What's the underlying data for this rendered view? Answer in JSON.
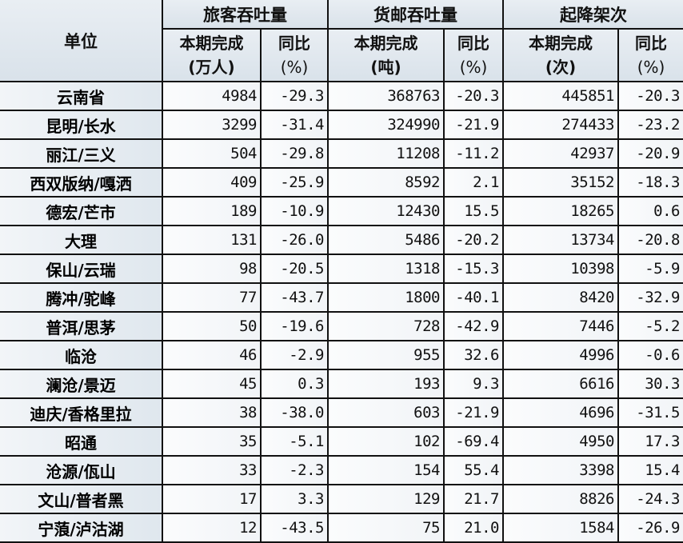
{
  "header": {
    "unit": "单位",
    "groups": [
      "旅客吞吐量",
      "货邮吞吐量",
      "起降架次"
    ],
    "sub": [
      {
        "line1": "本期完成",
        "line2": "(万人)"
      },
      {
        "line1": "同比",
        "line2": "(%)"
      },
      {
        "line1": "本期完成",
        "line2": "(吨)"
      },
      {
        "line1": "同比",
        "line2": "(%)"
      },
      {
        "line1": "本期完成",
        "line2": "(次)"
      },
      {
        "line1": "同比",
        "line2": "(%)"
      }
    ]
  },
  "rows": [
    {
      "name": "云南省",
      "values": [
        "4984",
        "-29.3",
        "368763",
        "-20.3",
        "445851",
        "-20.3"
      ]
    },
    {
      "name": "昆明/长水",
      "values": [
        "3299",
        "-31.4",
        "324990",
        "-21.9",
        "274433",
        "-23.2"
      ]
    },
    {
      "name": "丽江/三义",
      "values": [
        "504",
        "-29.8",
        "11208",
        "-11.2",
        "42937",
        "-20.9"
      ]
    },
    {
      "name": "西双版纳/嘎洒",
      "values": [
        "409",
        "-25.9",
        "8592",
        "2.1",
        "35152",
        "-18.3"
      ]
    },
    {
      "name": "德宏/芒市",
      "values": [
        "189",
        "-10.9",
        "12430",
        "15.5",
        "18265",
        "0.6"
      ]
    },
    {
      "name": "大理",
      "values": [
        "131",
        "-26.0",
        "5486",
        "-20.2",
        "13734",
        "-20.8"
      ]
    },
    {
      "name": "保山/云瑞",
      "values": [
        "98",
        "-20.5",
        "1318",
        "-15.3",
        "10398",
        "-5.9"
      ]
    },
    {
      "name": "腾冲/驼峰",
      "values": [
        "77",
        "-43.7",
        "1800",
        "-40.1",
        "8420",
        "-32.9"
      ]
    },
    {
      "name": "普洱/思茅",
      "values": [
        "50",
        "-19.6",
        "728",
        "-42.9",
        "7446",
        "-5.2"
      ]
    },
    {
      "name": "临沧",
      "values": [
        "46",
        "-2.9",
        "955",
        "32.6",
        "4996",
        "-0.6"
      ]
    },
    {
      "name": "澜沧/景迈",
      "values": [
        "45",
        "0.3",
        "193",
        "9.3",
        "6616",
        "30.3"
      ]
    },
    {
      "name": "迪庆/香格里拉",
      "values": [
        "38",
        "-38.0",
        "603",
        "-21.9",
        "4696",
        "-31.5"
      ]
    },
    {
      "name": "昭通",
      "values": [
        "35",
        "-5.1",
        "102",
        "-69.4",
        "4950",
        "17.3"
      ]
    },
    {
      "name": "沧源/佤山",
      "values": [
        "33",
        "-2.3",
        "154",
        "55.4",
        "3398",
        "15.4"
      ]
    },
    {
      "name": "文山/普者黑",
      "values": [
        "17",
        "3.3",
        "129",
        "21.7",
        "8826",
        "-24.3"
      ]
    },
    {
      "name": "宁蒗/泸沽湖",
      "values": [
        "12",
        "-43.5",
        "75",
        "21.0",
        "1584",
        "-26.9"
      ]
    }
  ]
}
